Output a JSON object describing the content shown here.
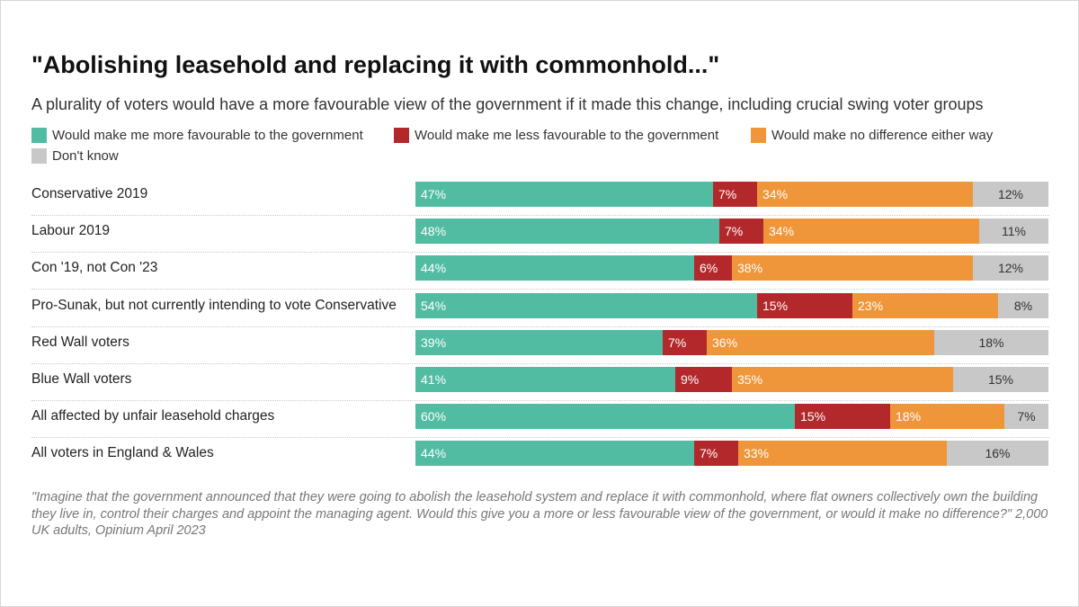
{
  "chart_data": {
    "type": "bar",
    "orientation": "horizontal",
    "stacked": true,
    "title": "\"Abolishing leasehold and replacing it with commonhold...\"",
    "subtitle": "A plurality of voters would have a more favourable view of the government if it made this change, including crucial swing voter groups",
    "legend_position": "top-left",
    "categories": [
      "Conservative 2019",
      "Labour 2019",
      "Con '19, not Con '23",
      "Pro-Sunak, but not currently intending to vote Conservative",
      "Red Wall voters",
      "Blue Wall voters",
      "All affected by unfair leasehold charges",
      "All voters in England & Wales"
    ],
    "series": [
      {
        "name": "Would make me more favourable to the government",
        "color": "#52bca2",
        "values": [
          47,
          48,
          44,
          54,
          39,
          41,
          60,
          44
        ]
      },
      {
        "name": "Would make me less favourable to the government",
        "color": "#b3282b",
        "values": [
          7,
          7,
          6,
          15,
          7,
          9,
          15,
          7
        ]
      },
      {
        "name": "Would make no difference either way",
        "color": "#f0963a",
        "values": [
          34,
          34,
          38,
          23,
          36,
          35,
          18,
          33
        ]
      },
      {
        "name": "Don't know",
        "color": "#c8c8c8",
        "values": [
          12,
          11,
          12,
          8,
          18,
          15,
          7,
          16
        ]
      }
    ],
    "value_suffix": "%",
    "note": "\"Imagine that the government announced that they were going to abolish the leasehold system and replace it with commonhold, where flat owners collectively own the building they live in, control their charges and appoint the managing agent. Would this give you a more or less favourable view of the government, or would it make no difference?\" 2,000 UK adults, Opinium April 2023"
  }
}
